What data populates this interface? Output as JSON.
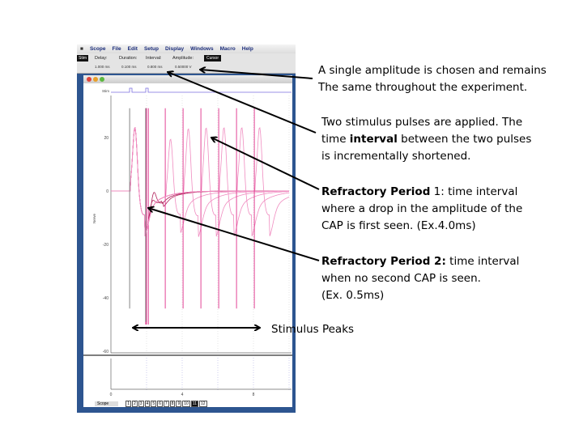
{
  "app": {
    "menu": [
      "Scope",
      "File",
      "Edit",
      "Setup",
      "Display",
      "Windows",
      "Macro",
      "Help"
    ],
    "toolbar": {
      "stim": "Stim",
      "cursor": "Cursor",
      "fields": [
        {
          "label": "Delay:",
          "value": "1.000 ms"
        },
        {
          "label": "Duration:",
          "value": "0.100 ms"
        },
        {
          "label": "Interval:",
          "value": "0.800 ms"
        },
        {
          "label": "Amplitude:",
          "value": "0.50000 V"
        }
      ]
    },
    "stim_channel": "Stim",
    "y_axis_label": "Nerve",
    "y_ticks": [
      "20",
      "0",
      "-20",
      "-40",
      "-60"
    ],
    "x_ticks": [
      "0",
      "4",
      "8"
    ],
    "status_select": "Scope",
    "page_tabs": [
      "1",
      "2",
      "3",
      "4",
      "5",
      "6",
      "7",
      "8",
      "9",
      "10",
      "11",
      "12"
    ]
  },
  "annotations": {
    "amplitude": [
      "A single amplitude is chosen and remains",
      "The same throughout the experiment."
    ],
    "interval": {
      "l1a": "Two stimulus pulses are applied. The",
      "l2a": "time ",
      "l2b": "interval",
      "l2c": " between the two pulses",
      "l3": "is incrementally shortened."
    },
    "rp1": {
      "bold": "Refractory Period",
      "l1": " 1: time interval",
      "l2": "where a drop in the amplitude of the",
      "l3": "CAP is first seen. (Ex.4.0ms)"
    },
    "rp2": {
      "bold": "Refractory Period 2:",
      "l1": " time interval",
      "l2": "when no second CAP is seen.",
      "l3": "(Ex. 0.5ms)"
    },
    "stimulus_peaks": "Stimulus Peaks"
  },
  "colors": {
    "trace": "#e0308a",
    "trace_light": "#f08cc0",
    "stim_line": "#7b6fe0",
    "window_blue": "#2d5590"
  }
}
